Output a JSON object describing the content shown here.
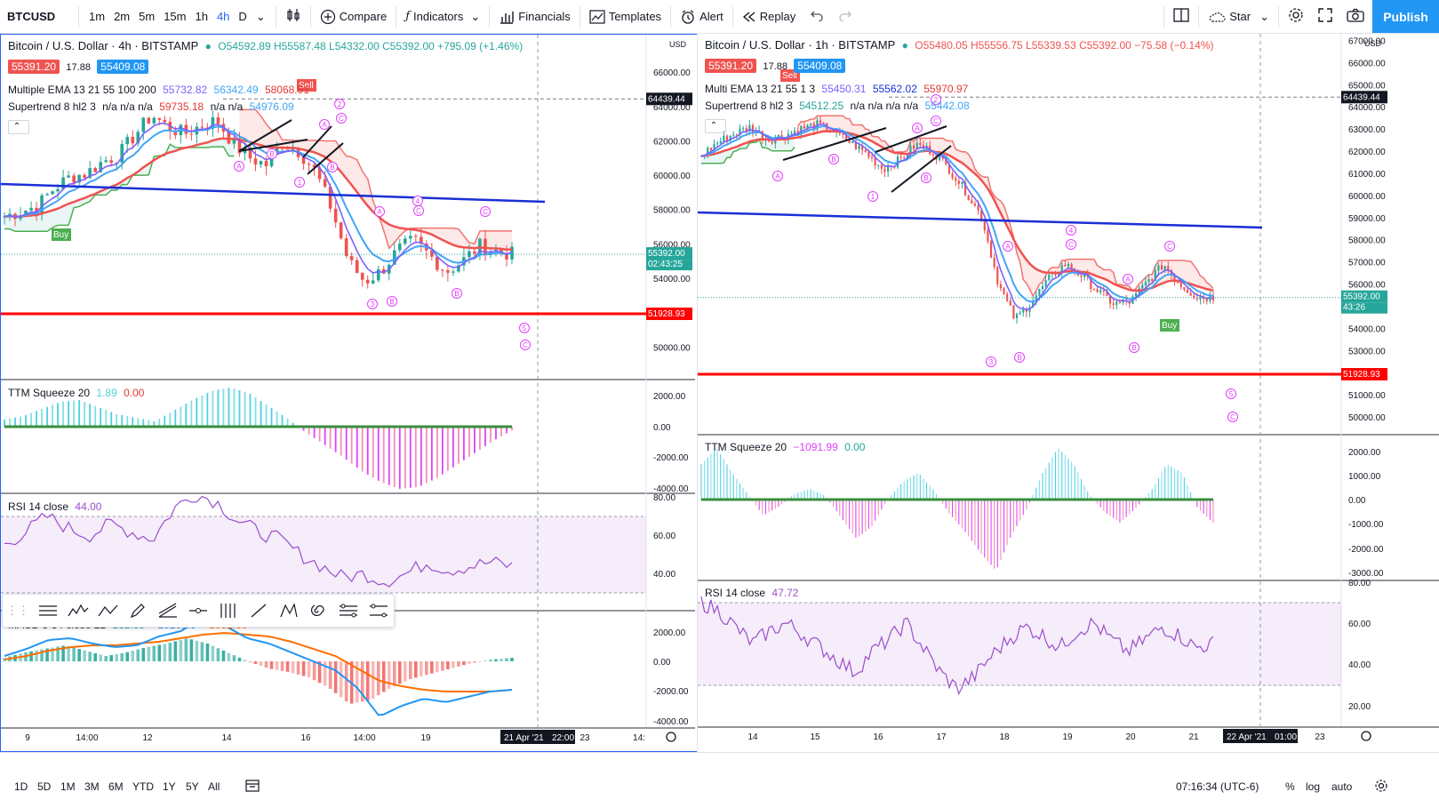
{
  "toolbar": {
    "symbol": "BTCUSD",
    "timeframes": [
      "1m",
      "2m",
      "5m",
      "15m",
      "1h",
      "4h",
      "D"
    ],
    "active_timeframe": "4h",
    "compare_label": "Compare",
    "indicators_label": "Indicators",
    "financials_label": "Financials",
    "templates_label": "Templates",
    "alert_label": "Alert",
    "replay_label": "Replay",
    "star_label": "Star",
    "publish_label": "Publish"
  },
  "left_chart": {
    "title": "Bitcoin / U.S. Dollar · 4h · BITSTAMP",
    "ohlc": "O54592.89 H55587.48 L54332.00 C55392.00 +795.09 (+1.46%)",
    "bid": "55391.20",
    "spread": "17.88",
    "ask": "55409.08",
    "ema_label": "Multiple EMA 13 21 55 100 200",
    "ema_values": [
      "55732.82",
      "56342.49",
      "58068.91"
    ],
    "supertrend_label": "Supertrend 8 hl2 3",
    "supertrend_values": "n/a n/a n/a",
    "supertrend_v1": "59735.18",
    "supertrend_v2": "n/a n/a",
    "supertrend_v3": "54976.09",
    "sell_label": "Sell",
    "buy_label": "Buy",
    "price_axis": [
      "66000.00",
      "64000.00",
      "62000.00",
      "60000.00",
      "58000.00",
      "56000.00",
      "54000.00",
      "52000.00",
      "50000.00"
    ],
    "axis_top": "64000",
    "currency": "USD",
    "hline_price": "64439.44",
    "current_price": "55392.00",
    "countdown": "02:43:25",
    "support_price": "51928.93",
    "ttm_label": "TTM Squeeze 20",
    "ttm_value1": "1.89",
    "ttm_value2": "0.00",
    "ttm_axis": [
      "2000.00",
      "0.00",
      "-2000.00",
      "-4000.00"
    ],
    "rsi_label": "RSI 14 close",
    "rsi_value": "44.00",
    "rsi_axis": [
      "80.00",
      "60.00",
      "40.00"
    ],
    "macd_label": "MACD 5 34 close 21",
    "macd_values": [
      "132.35",
      "−1920.45",
      "−2052.80"
    ],
    "macd_axis": [
      "2000.00",
      "0.00",
      "-2000.00",
      "-4000.00"
    ],
    "time_axis": [
      "9",
      "14:00",
      "12",
      "14",
      "16",
      "14:00",
      "19",
      "23",
      "14:"
    ],
    "time_cursor": "21 Apr '21",
    "time_cursor_time": "22:00",
    "wave_labels": [
      "A",
      "B",
      "1",
      "2",
      "A",
      "B",
      "C",
      "3",
      "4",
      "B",
      "C",
      "A",
      "B",
      "C",
      "5",
      "C"
    ]
  },
  "right_chart": {
    "title": "Bitcoin / U.S. Dollar · 1h · BITSTAMP",
    "ohlc": "O55480.05 H55556.75 L55339.53 C55392.00 −75.58 (−0.14%)",
    "bid": "55391.20",
    "spread": "17.88",
    "ask": "55409.08",
    "ema_label": "Multi EMA 13 21 55 1 3",
    "ema_values": [
      "55450.31",
      "55562.02",
      "55970.97"
    ],
    "supertrend_label": "Supertrend 8 hl2 3",
    "supertrend_v1": "54512.25",
    "supertrend_v2": "n/a n/a n/a n/a",
    "supertrend_v3": "55442.08",
    "sell_label": "Sell",
    "buy_label": "Buy",
    "price_axis": [
      "67000.00",
      "66000.00",
      "65000.00",
      "64000.00",
      "63000.00",
      "62000.00",
      "61000.00",
      "60000.00",
      "59000.00",
      "58000.00",
      "57000.00",
      "56000.00",
      "55000.00",
      "54000.00",
      "53000.00",
      "52000.00",
      "51000.00",
      "50000.00"
    ],
    "currency": "USD",
    "hline_price": "64439.44",
    "current_price": "55392.00",
    "countdown": "43:26",
    "support_price": "51928.93",
    "ttm_label": "TTM Squeeze 20",
    "ttm_value1": "−1091.99",
    "ttm_value2": "0.00",
    "ttm_axis": [
      "2000.00",
      "1000.00",
      "0.00",
      "-1000.00",
      "-2000.00",
      "-3000.00"
    ],
    "rsi_label": "RSI 14 close",
    "rsi_value": "47.72",
    "rsi_axis": [
      "80.00",
      "60.00",
      "40.00",
      "20.00"
    ],
    "time_axis": [
      "14",
      "15",
      "16",
      "17",
      "18",
      "19",
      "20",
      "21",
      "23"
    ],
    "time_cursor": "22 Apr '21",
    "time_cursor_time": "01:00",
    "wave_labels": [
      "A",
      "B",
      "1",
      "A",
      "B",
      "C",
      "2",
      "A",
      "3",
      "B",
      "4",
      "C",
      "C",
      "A",
      "B",
      "5",
      "C"
    ]
  },
  "bottom": {
    "ranges": [
      "1D",
      "5D",
      "1M",
      "3M",
      "6M",
      "YTD",
      "1Y",
      "5Y",
      "All"
    ],
    "clock": "07:16:34 (UTC-6)",
    "percent_label": "%",
    "log_label": "log",
    "auto_label": "auto"
  },
  "colors": {
    "up": "#26a69a",
    "down": "#ef5350",
    "ema_fast": "#7b61ff",
    "ema_mid": "#42a5f5",
    "ema_slow": "#ef5350",
    "support": "#ff0000",
    "trend": "#1a2fd6",
    "accent": "#2962ff",
    "rsi": "#9c4dcc",
    "wave": "#e040fb"
  }
}
